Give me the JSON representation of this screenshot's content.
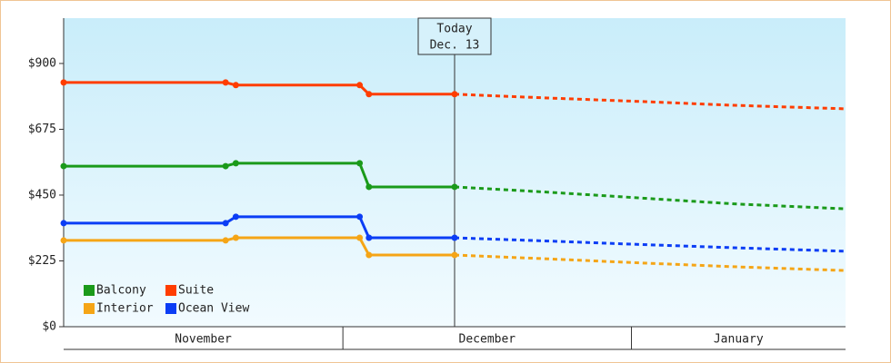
{
  "chart_data": {
    "type": "line",
    "today": {
      "x": 42,
      "label": "Today",
      "date": "Dec. 13"
    },
    "x": [
      0,
      17.4,
      18.5,
      31.8,
      32.8,
      42
    ],
    "forecast_x": [
      42,
      52,
      62,
      72,
      84
    ],
    "xlim": [
      0,
      84
    ],
    "x_bands": [
      {
        "label": "November",
        "from": 0,
        "to": 30
      },
      {
        "label": "December",
        "from": 30,
        "to": 61
      },
      {
        "label": "January",
        "from": 61,
        "to": 84
      }
    ],
    "ylim": [
      0,
      1055
    ],
    "yticks": [
      {
        "value": 0,
        "label": "$0"
      },
      {
        "value": 225,
        "label": "$225"
      },
      {
        "value": 450,
        "label": "$450"
      },
      {
        "value": 675,
        "label": "$675"
      },
      {
        "value": 900,
        "label": "$900"
      }
    ],
    "legend": "bottom-left",
    "series": [
      {
        "name": "Balcony",
        "color": "#1a9a1a",
        "values": [
          549,
          549,
          559,
          559,
          478,
          478
        ],
        "forecast": [
          478,
          460,
          440,
          420,
          403
        ]
      },
      {
        "name": "Suite",
        "color": "#ff3d00",
        "values": [
          835,
          835,
          826,
          826,
          795,
          795
        ],
        "forecast": [
          795,
          782,
          770,
          757,
          745
        ]
      },
      {
        "name": "Interior",
        "color": "#f5a516",
        "values": [
          295,
          295,
          304,
          304,
          245,
          245
        ],
        "forecast": [
          245,
          232,
          218,
          205,
          192
        ]
      },
      {
        "name": "Ocean View",
        "color": "#0b3df5",
        "values": [
          354,
          354,
          376,
          376,
          304,
          304
        ],
        "forecast": [
          304,
          293,
          281,
          270,
          258
        ]
      }
    ]
  }
}
